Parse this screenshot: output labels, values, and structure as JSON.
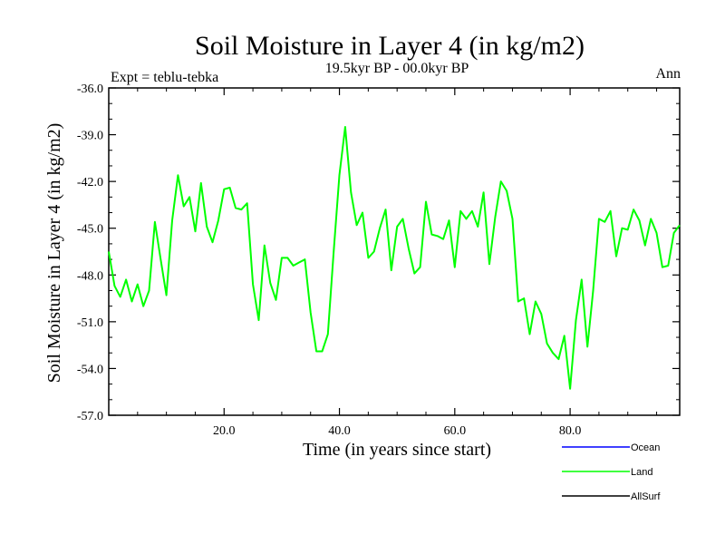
{
  "chart_data": {
    "type": "line",
    "title": "Soil Moisture in Layer 4 (in kg/m2)",
    "subtitle": "19.5kyr BP - 00.0kyr BP",
    "left_label": "Expt = teblu-tebka",
    "right_label": "Ann",
    "xlabel": "Time (in years since start)",
    "ylabel": "Soil Moisture in Layer 4 (in kg/m2)",
    "xlim": [
      0,
      99
    ],
    "ylim": [
      -57.0,
      -36.0
    ],
    "x_ticks": [
      20,
      40,
      60,
      80
    ],
    "x_tick_labels": [
      "20.0",
      "40.0",
      "60.0",
      "80.0"
    ],
    "y_ticks": [
      -36,
      -39,
      -42,
      -45,
      -48,
      -51,
      -54,
      -57
    ],
    "y_tick_labels": [
      "-36.0",
      "-39.0",
      "-42.0",
      "-45.0",
      "-48.0",
      "-51.0",
      "-54.0",
      "-57.0"
    ],
    "legend": [
      {
        "name": "Ocean",
        "color": "#0000ff"
      },
      {
        "name": "Land",
        "color": "#00ff00"
      },
      {
        "name": "AllSurf",
        "color": "#000000"
      }
    ],
    "series": [
      {
        "name": "Land",
        "color": "#00ff00",
        "x": [
          0,
          1,
          2,
          3,
          4,
          5,
          6,
          7,
          8,
          9,
          10,
          11,
          12,
          13,
          14,
          15,
          16,
          17,
          18,
          19,
          20,
          21,
          22,
          23,
          24,
          25,
          26,
          27,
          28,
          29,
          30,
          31,
          32,
          33,
          34,
          35,
          36,
          37,
          38,
          39,
          40,
          41,
          42,
          43,
          44,
          45,
          46,
          47,
          48,
          49,
          50,
          51,
          52,
          53,
          54,
          55,
          56,
          57,
          58,
          59,
          60,
          61,
          62,
          63,
          64,
          65,
          66,
          67,
          68,
          69,
          70,
          71,
          72,
          73,
          74,
          75,
          76,
          77,
          78,
          79,
          80,
          81,
          82,
          83,
          84,
          85,
          86,
          87,
          88,
          89,
          90,
          91,
          92,
          93,
          94,
          95,
          96,
          97,
          98,
          99
        ],
        "values": [
          -46.5,
          -48.7,
          -49.4,
          -48.3,
          -49.7,
          -48.6,
          -50.0,
          -49.0,
          -44.6,
          -47.0,
          -49.3,
          -44.5,
          -41.6,
          -43.6,
          -43.0,
          -45.2,
          -42.1,
          -44.9,
          -45.9,
          -44.5,
          -42.5,
          -42.4,
          -43.7,
          -43.8,
          -43.4,
          -48.6,
          -50.9,
          -46.1,
          -48.5,
          -49.6,
          -46.9,
          -46.9,
          -47.4,
          -47.2,
          -47.0,
          -50.4,
          -52.9,
          -52.9,
          -51.8,
          -46.5,
          -41.6,
          -38.5,
          -42.7,
          -44.8,
          -44.0,
          -46.9,
          -46.5,
          -45.0,
          -43.8,
          -47.7,
          -44.9,
          -44.4,
          -46.3,
          -47.9,
          -47.5,
          -43.3,
          -45.4,
          -45.5,
          -45.7,
          -44.5,
          -47.5,
          -43.9,
          -44.4,
          -43.9,
          -44.9,
          -42.7,
          -47.3,
          -44.3,
          -42.0,
          -42.6,
          -44.4,
          -49.7,
          -49.5,
          -51.8,
          -49.7,
          -50.5,
          -52.4,
          -53.0,
          -53.4,
          -51.9,
          -55.3,
          -50.9,
          -48.3,
          -52.6,
          -49.0,
          -44.4,
          -44.6,
          -43.9,
          -46.8,
          -45.0,
          -45.1,
          -43.8,
          -44.5,
          -46.1,
          -44.4,
          -45.3,
          -47.5,
          -47.4,
          -45.3,
          -44.8
        ]
      }
    ]
  }
}
